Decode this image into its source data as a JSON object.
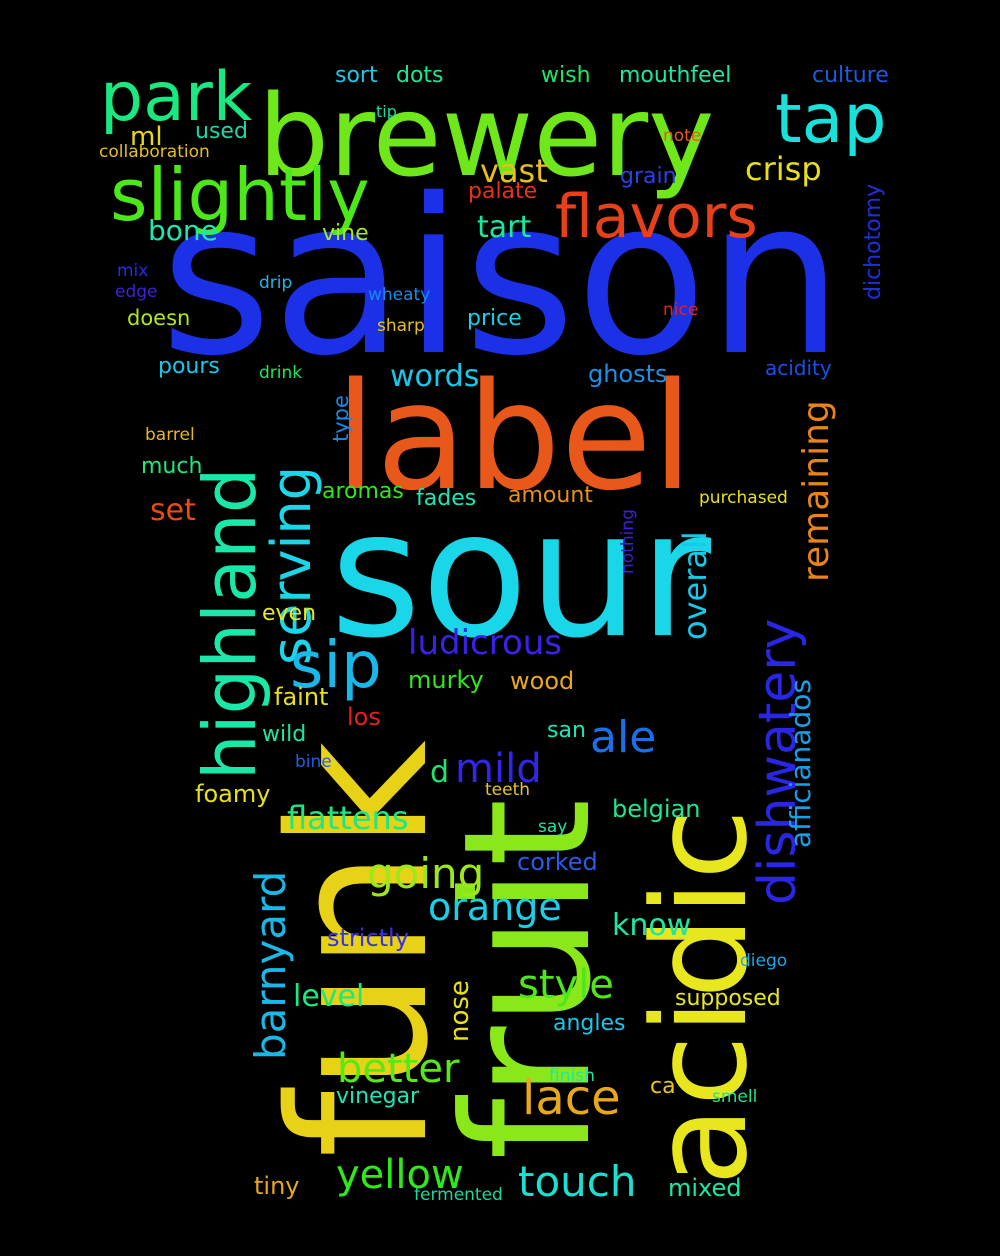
{
  "background": "#000000",
  "words": [
    {
      "text": "saison",
      "color": "#1c30e8"
    },
    {
      "text": "label",
      "color": "#e8581a"
    },
    {
      "text": "sour",
      "color": "#19d6e8"
    },
    {
      "text": "brewery",
      "color": "#6ee81a"
    },
    {
      "text": "funk",
      "color": "#e8d218"
    },
    {
      "text": "fruit",
      "color": "#8ae81a"
    },
    {
      "text": "acidic",
      "color": "#e8e61c"
    },
    {
      "text": "park",
      "color": "#1ae880"
    },
    {
      "text": "tap",
      "color": "#19e0d8"
    },
    {
      "text": "slightly",
      "color": "#4ce81a"
    },
    {
      "text": "flavors",
      "color": "#e8401a"
    },
    {
      "text": "highland",
      "color": "#1ae8a8"
    },
    {
      "text": "serving",
      "color": "#1ad6e8"
    },
    {
      "text": "sip",
      "color": "#19b8e8"
    },
    {
      "text": "dishwatery",
      "color": "#2a26e8"
    },
    {
      "text": "barnyard",
      "color": "#1ab8e8"
    },
    {
      "text": "remaining",
      "color": "#e8841a"
    },
    {
      "text": "afficianados",
      "color": "#1a9ee8"
    },
    {
      "text": "overall",
      "color": "#19c8e8"
    },
    {
      "text": "ludicrous",
      "color": "#3a22e8"
    },
    {
      "text": "ale",
      "color": "#1a70e8"
    },
    {
      "text": "mild",
      "color": "#3426e8"
    },
    {
      "text": "going",
      "color": "#9ee81a"
    },
    {
      "text": "orange",
      "color": "#19d0e8"
    },
    {
      "text": "style",
      "color": "#4ce81a"
    },
    {
      "text": "better",
      "color": "#58e81a"
    },
    {
      "text": "lace",
      "color": "#e8a81a"
    },
    {
      "text": "yellow",
      "color": "#30e81a"
    },
    {
      "text": "touch",
      "color": "#19e0d0"
    },
    {
      "text": "crisp",
      "color": "#e8e01a"
    },
    {
      "text": "vast",
      "color": "#e8c01a"
    },
    {
      "text": "tart",
      "color": "#1ae8a0"
    },
    {
      "text": "bone",
      "color": "#1ae8b0"
    },
    {
      "text": "ml",
      "color": "#e8d81a"
    },
    {
      "text": "used",
      "color": "#1ad8a8"
    },
    {
      "text": "sort",
      "color": "#1ac8e8"
    },
    {
      "text": "dots",
      "color": "#1ae890"
    },
    {
      "text": "wish",
      "color": "#1ae86a"
    },
    {
      "text": "mouthfeel",
      "color": "#1ae8a0"
    },
    {
      "text": "culture",
      "color": "#1a5ae8"
    },
    {
      "text": "tip",
      "color": "#1ad8a0"
    },
    {
      "text": "note",
      "color": "#e85a1a"
    },
    {
      "text": "collaboration",
      "color": "#e8c01a"
    },
    {
      "text": "palate",
      "color": "#e8301a"
    },
    {
      "text": "grain",
      "color": "#2a40e8"
    },
    {
      "text": "dichotomy",
      "color": "#2030d8"
    },
    {
      "text": "vine",
      "color": "#a8e81a"
    },
    {
      "text": "mix",
      "color": "#2a2ae8"
    },
    {
      "text": "edge",
      "color": "#4022d8"
    },
    {
      "text": "drip",
      "color": "#1ab8e8"
    },
    {
      "text": "wheaty",
      "color": "#1a8ae8"
    },
    {
      "text": "nice",
      "color": "#e8201a"
    },
    {
      "text": "doesn",
      "color": "#b0e81a"
    },
    {
      "text": "sharp",
      "color": "#e8c01a"
    },
    {
      "text": "price",
      "color": "#19d0e8"
    },
    {
      "text": "pours",
      "color": "#19c8e8"
    },
    {
      "text": "drink",
      "color": "#1ae860"
    },
    {
      "text": "words",
      "color": "#19c8e8"
    },
    {
      "text": "ghosts",
      "color": "#1a90e8"
    },
    {
      "text": "acidity",
      "color": "#1a50e8"
    },
    {
      "text": "type",
      "color": "#1a8ae8"
    },
    {
      "text": "barrel",
      "color": "#e8b81a"
    },
    {
      "text": "much",
      "color": "#1ae880"
    },
    {
      "text": "set",
      "color": "#e84a1a"
    },
    {
      "text": "aromas",
      "color": "#30e81a"
    },
    {
      "text": "fades",
      "color": "#1ae8b8"
    },
    {
      "text": "amount",
      "color": "#e8901a"
    },
    {
      "text": "purchased",
      "color": "#e8e01a"
    },
    {
      "text": "nothing",
      "color": "#3a22d8"
    },
    {
      "text": "even",
      "color": "#e8e81a"
    },
    {
      "text": "faint",
      "color": "#e8e01a"
    },
    {
      "text": "murky",
      "color": "#30e81a"
    },
    {
      "text": "wood",
      "color": "#e8a81a"
    },
    {
      "text": "los",
      "color": "#e8201a"
    },
    {
      "text": "wild",
      "color": "#1ae8a0"
    },
    {
      "text": "san",
      "color": "#1ae8b8"
    },
    {
      "text": "bine",
      "color": "#1a60e8"
    },
    {
      "text": "d",
      "color": "#1ae870"
    },
    {
      "text": "foamy",
      "color": "#e8e01a"
    },
    {
      "text": "flattens",
      "color": "#1ae880"
    },
    {
      "text": "teeth",
      "color": "#e8c81a"
    },
    {
      "text": "belgian",
      "color": "#1ae890"
    },
    {
      "text": "say",
      "color": "#1ae8a0"
    },
    {
      "text": "corked",
      "color": "#2a5ae8"
    },
    {
      "text": "know",
      "color": "#1ae8a8"
    },
    {
      "text": "strictly",
      "color": "#3a30e8"
    },
    {
      "text": "diego",
      "color": "#19a8e8"
    },
    {
      "text": "level",
      "color": "#1ae880"
    },
    {
      "text": "nose",
      "color": "#e8e01a"
    },
    {
      "text": "supposed",
      "color": "#e8e81a"
    },
    {
      "text": "angles",
      "color": "#19c8e8"
    },
    {
      "text": "finish",
      "color": "#1ae8a0"
    },
    {
      "text": "ca",
      "color": "#e8c81a"
    },
    {
      "text": "vinegar",
      "color": "#1ae8b8"
    },
    {
      "text": "smell",
      "color": "#1ae890"
    },
    {
      "text": "tiny",
      "color": "#e8a81a"
    },
    {
      "text": "fermented",
      "color": "#1ad8a0"
    },
    {
      "text": "mixed",
      "color": "#1ae8a8"
    }
  ]
}
